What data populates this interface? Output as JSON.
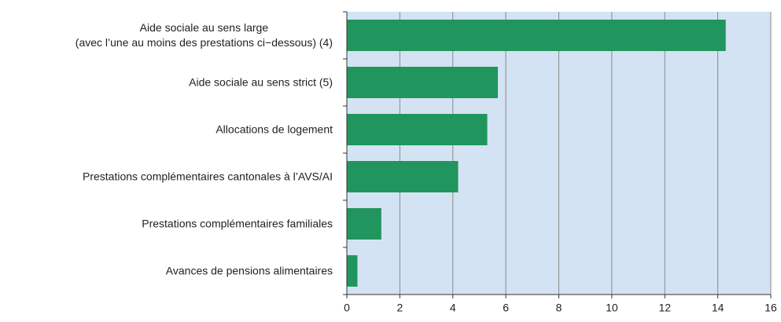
{
  "chart_data": {
    "type": "bar",
    "orientation": "horizontal",
    "categories": [
      "Aide sociale au sens large\n(avec l’une au moins des prestations ci−dessous) (4)",
      "Aide sociale au sens strict (5)",
      "Allocations de logement",
      "Prestations complémentaires cantonales à l’AVS/AI",
      "Prestations complémentaires familiales",
      "Avances de pensions alimentaires"
    ],
    "values": [
      14.3,
      5.7,
      5.3,
      4.2,
      1.3,
      0.4
    ],
    "color": "#21955e",
    "background": "#d3e3f3",
    "xlim": [
      0,
      16
    ],
    "xticks": [
      0,
      2,
      4,
      6,
      8,
      10,
      12,
      14,
      16
    ],
    "grid": true
  }
}
